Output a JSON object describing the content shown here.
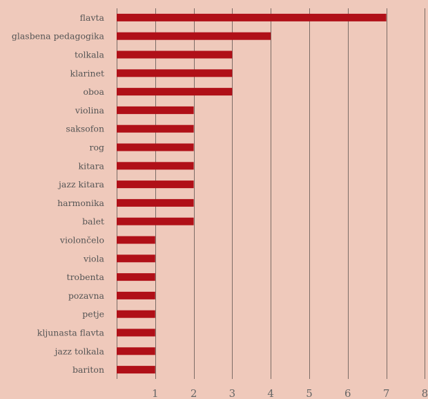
{
  "chart_data": {
    "type": "bar",
    "orientation": "horizontal",
    "categories": [
      "flavta",
      "glasbena pedagogika",
      "tolkala",
      "klarinet",
      "oboa",
      "violina",
      "saksofon",
      "rog",
      "kitara",
      "jazz kitara",
      "harmonika",
      "balet",
      "violončelo",
      "viola",
      "trobenta",
      "pozavna",
      "petje",
      "kljunasta flavta",
      "jazz tolkala",
      "bariton"
    ],
    "values": [
      7,
      4,
      3,
      3,
      3,
      2,
      2,
      2,
      2,
      2,
      2,
      2,
      1,
      1,
      1,
      1,
      1,
      1,
      1,
      1
    ],
    "title": "",
    "xlabel": "",
    "ylabel": "",
    "xlim": [
      0,
      8
    ],
    "xticks": [
      "1",
      "2",
      "3",
      "4",
      "5",
      "6",
      "7",
      "8"
    ],
    "grid": true,
    "bar_color": "#b01018",
    "background_color": "#efc9bb"
  }
}
